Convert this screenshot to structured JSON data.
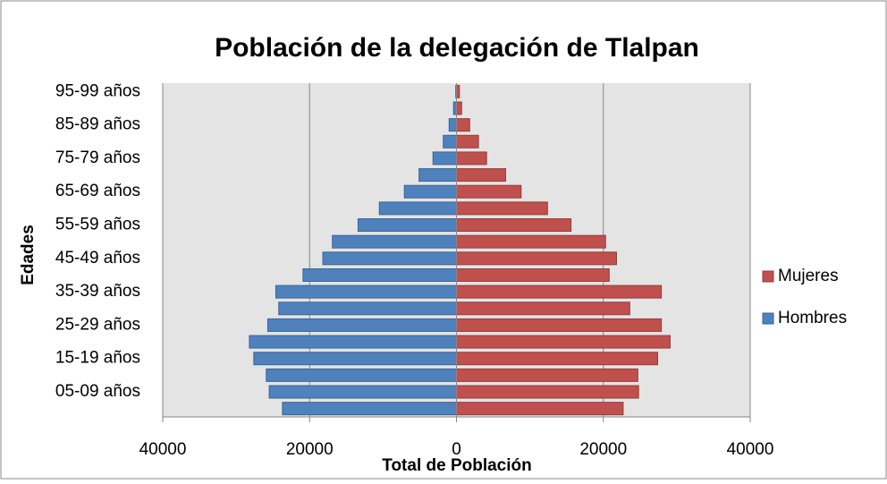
{
  "chart_data": {
    "type": "bar",
    "orientation": "horizontal",
    "stacked": true,
    "title": "Población de la delegación de Tlalpan",
    "y_label": "Edades",
    "x_label": "Total de Población",
    "categories": [
      null,
      "05-09 años",
      null,
      "15-19 años",
      null,
      "25-29 años",
      null,
      "35-39 años",
      null,
      "45-49 años",
      null,
      "55-59 años",
      null,
      "65-69 años",
      null,
      "75-79 años",
      null,
      "85-89 años",
      null,
      "95-99 años"
    ],
    "series": [
      {
        "name": "Hombres",
        "color": "#4f81bd",
        "values": [
          -23700,
          -25500,
          -25900,
          -27600,
          -28200,
          -25700,
          -24200,
          -24600,
          -20900,
          -18200,
          -16900,
          -13400,
          -10500,
          -7100,
          -5100,
          -3200,
          -1800,
          -1000,
          -400,
          -100
        ]
      },
      {
        "name": "Mujeres",
        "color": "#c0504d",
        "values": [
          22700,
          24800,
          24700,
          27400,
          29100,
          27900,
          23600,
          27900,
          20800,
          21800,
          20300,
          15600,
          12400,
          8800,
          6700,
          4100,
          3000,
          1800,
          700,
          400
        ]
      }
    ],
    "xlim": [
      -40000,
      40000
    ],
    "xticks": [
      {
        "value": -40000,
        "label": "40000"
      },
      {
        "value": -20000,
        "label": "20000"
      },
      0,
      20000,
      40000
    ],
    "grid": true,
    "legend": "right"
  }
}
